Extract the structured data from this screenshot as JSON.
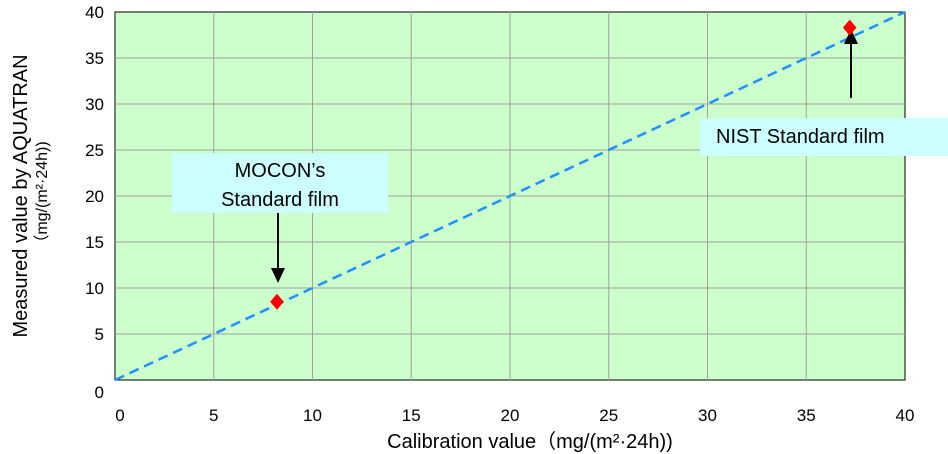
{
  "chart_data": {
    "type": "scatter",
    "xlabel": "Calibration value（mg/(m²·24h))",
    "ylabel_line1": "Measured value by AQUATRAN",
    "ylabel_line2": "（mg/(m²·24h))",
    "xlim": [
      0,
      40
    ],
    "ylim": [
      0,
      40
    ],
    "x_ticks": [
      "0",
      "5",
      "10",
      "15",
      "20",
      "25",
      "30",
      "35",
      "40"
    ],
    "y_ticks": [
      "0",
      "5",
      "10",
      "15",
      "20",
      "25",
      "30",
      "35",
      "40"
    ],
    "grid": true,
    "series": [
      {
        "points": [
          {
            "x": 8.2,
            "y": 8.5
          },
          {
            "x": 37.2,
            "y": 38.3
          }
        ],
        "marker": "diamond",
        "color": "#ff0000"
      }
    ],
    "reference_line": {
      "from": [
        0,
        0
      ],
      "to": [
        40,
        40
      ],
      "style": "dashed",
      "color": "#1e90ff"
    },
    "annotations": [
      {
        "text_line1": "MOCON’s",
        "text_line2": "Standard film",
        "target": [
          8.2,
          8.5
        ]
      },
      {
        "text": "NIST Standard  film",
        "target": [
          37.2,
          38.3
        ]
      }
    ],
    "colors": {
      "plot_background": "#ccffcc",
      "grid": "#a0a0a0",
      "callout_background": "#ccffff"
    }
  }
}
